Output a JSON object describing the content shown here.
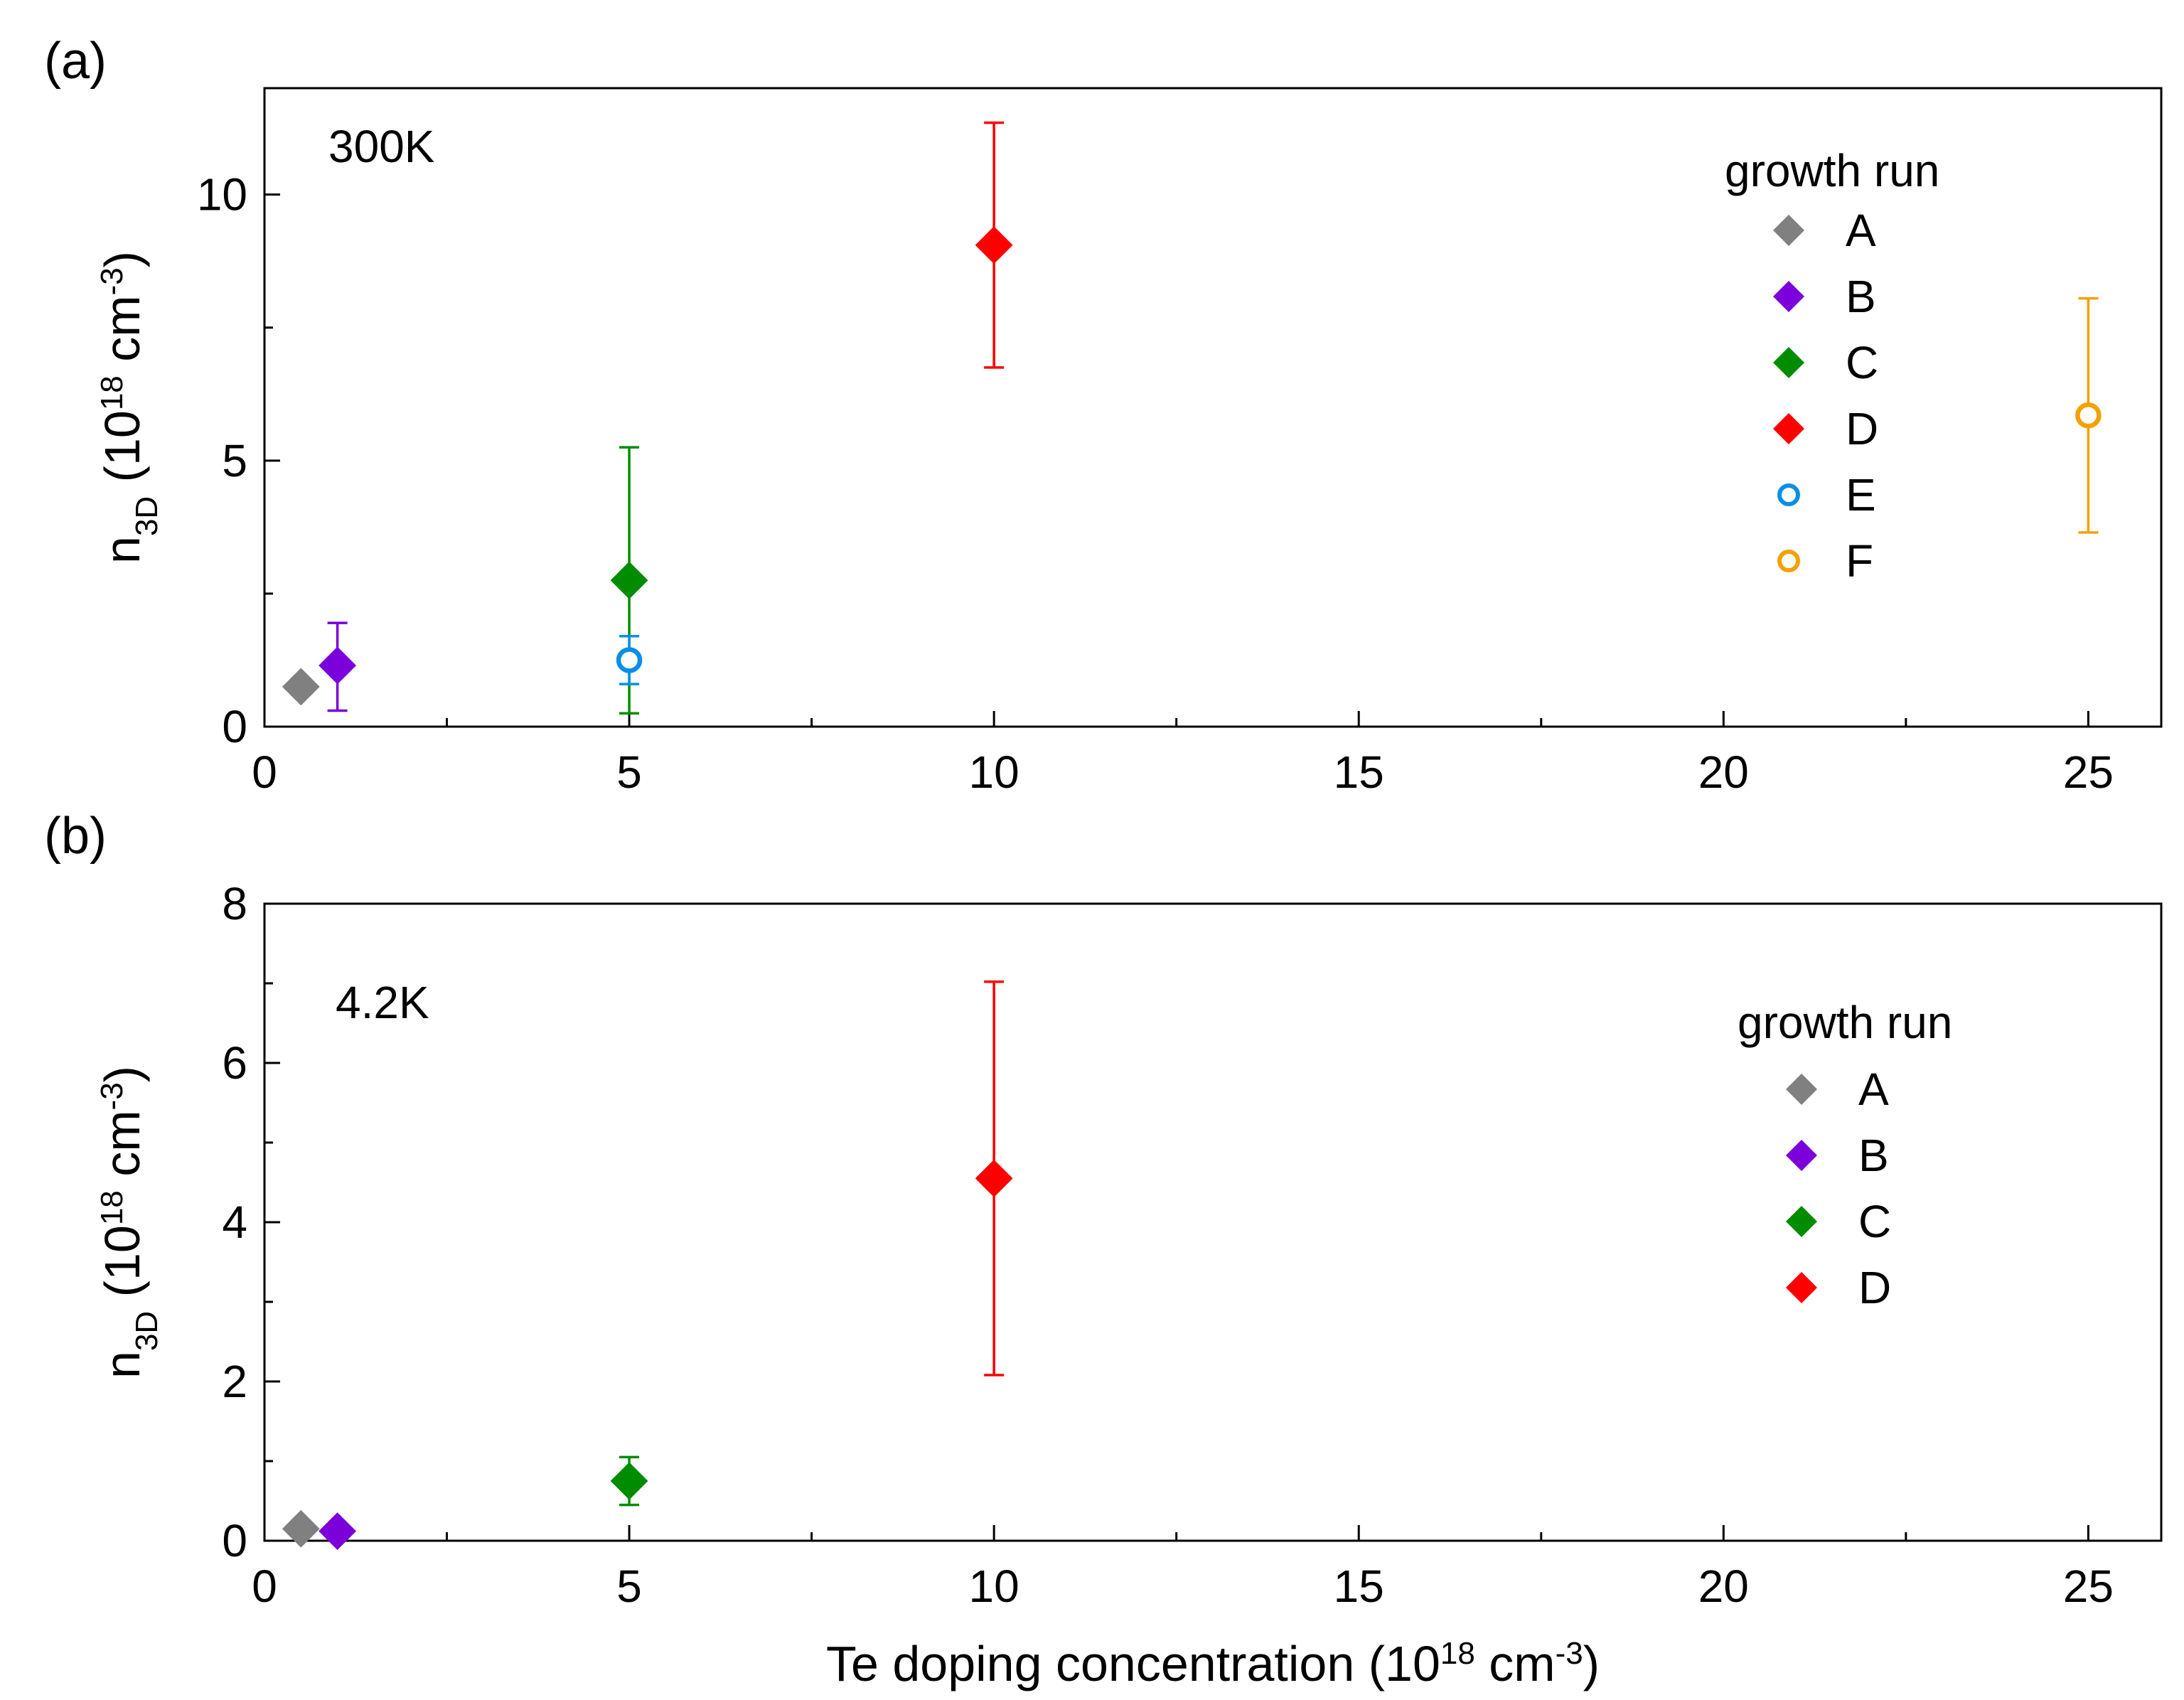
{
  "chart_data": [
    {
      "type": "scatter",
      "panel_label": "(a)",
      "annotation": "300K",
      "xlabel": "",
      "ylabel": "n3D (10^18 cm^-3)",
      "xlim": [
        0,
        26
      ],
      "ylim": [
        0,
        12
      ],
      "xticks": [
        "0",
        "5",
        "10",
        "15",
        "20",
        "25"
      ],
      "yticks": [
        "0",
        "5",
        "10"
      ],
      "legend_title": "growth run",
      "legend_position": "top-right",
      "series": [
        {
          "name": "A",
          "marker": "diamond",
          "filled": true,
          "color": "#808080",
          "x": 0.5,
          "y": 0.75,
          "err_low": 0.6,
          "err_high": 0.9
        },
        {
          "name": "B",
          "marker": "diamond",
          "filled": true,
          "color": "#7B00D9",
          "x": 1.0,
          "y": 1.15,
          "err_low": 0.3,
          "err_high": 1.95
        },
        {
          "name": "C",
          "marker": "diamond",
          "filled": true,
          "color": "#008C00",
          "x": 5.0,
          "y": 2.75,
          "err_low": 0.25,
          "err_high": 5.25
        },
        {
          "name": "D",
          "marker": "diamond",
          "filled": true,
          "color": "#FF0000",
          "x": 10.0,
          "y": 9.05,
          "err_low": 6.75,
          "err_high": 11.35
        },
        {
          "name": "E",
          "marker": "circle",
          "filled": false,
          "color": "#0A8FE6",
          "x": 5.0,
          "y": 1.25,
          "err_low": 0.8,
          "err_high": 1.7
        },
        {
          "name": "F",
          "marker": "circle",
          "filled": false,
          "color": "#F5A000",
          "x": 25.0,
          "y": 5.85,
          "err_low": 3.65,
          "err_high": 8.05
        }
      ]
    },
    {
      "type": "scatter",
      "panel_label": "(b)",
      "annotation": "4.2K",
      "xlabel": "Te doping concentration (10^18 cm^-3)",
      "ylabel": "n3D (10^18 cm^-3)",
      "xlim": [
        0,
        26
      ],
      "ylim": [
        0,
        8
      ],
      "xticks": [
        "0",
        "5",
        "10",
        "15",
        "20",
        "25"
      ],
      "yticks": [
        "0",
        "2",
        "4",
        "6",
        "8"
      ],
      "legend_title": "growth run",
      "legend_position": "top-right",
      "series": [
        {
          "name": "A",
          "marker": "diamond",
          "filled": true,
          "color": "#808080",
          "x": 0.5,
          "y": 0.15,
          "err_low": 0.05,
          "err_high": 0.25
        },
        {
          "name": "B",
          "marker": "diamond",
          "filled": true,
          "color": "#7B00D9",
          "x": 1.0,
          "y": 0.12,
          "err_low": 0.07,
          "err_high": 0.17
        },
        {
          "name": "C",
          "marker": "diamond",
          "filled": true,
          "color": "#008C00",
          "x": 5.0,
          "y": 0.75,
          "err_low": 0.45,
          "err_high": 1.05
        },
        {
          "name": "D",
          "marker": "diamond",
          "filled": true,
          "color": "#FF0000",
          "x": 10.0,
          "y": 4.55,
          "err_low": 2.08,
          "err_high": 7.02
        }
      ]
    }
  ]
}
